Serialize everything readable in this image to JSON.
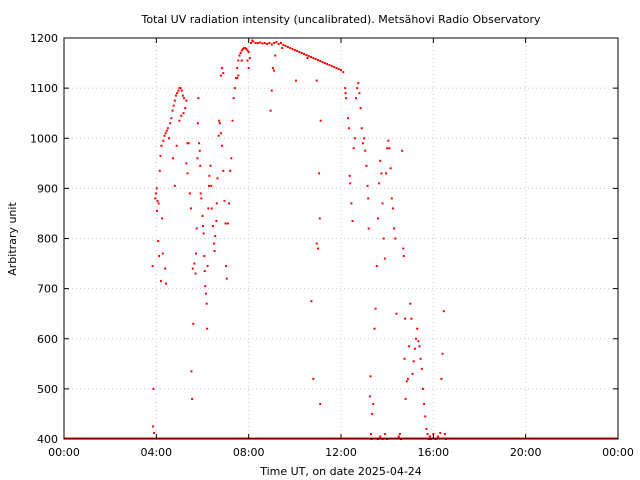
{
  "chart_data": {
    "type": "scatter",
    "title": "Total UV radiation intensity (uncalibrated). Metsähovi Radio Observatory",
    "xlabel": "Time UT, on date 2025-04-24",
    "ylabel": "Arbitrary unit",
    "xlim": [
      0,
      24
    ],
    "ylim": [
      400,
      1200
    ],
    "grid": true,
    "x_tick_values": [
      0,
      4,
      8,
      12,
      16,
      20,
      24
    ],
    "x_tick_labels": [
      "00:00",
      "04:00",
      "08:00",
      "12:00",
      "16:00",
      "20:00",
      "00:00"
    ],
    "y_tick_values": [
      400,
      500,
      600,
      700,
      800,
      900,
      1000,
      1100,
      1200
    ],
    "y_tick_labels": [
      "400",
      "500",
      "600",
      "700",
      "800",
      "900",
      "1000",
      "1100",
      "1200"
    ],
    "series": [
      {
        "color": "#ff0000",
        "points": [
          [
            3.84,
            745
          ],
          [
            3.88,
            500
          ],
          [
            3.86,
            425
          ],
          [
            3.9,
            412
          ],
          [
            3.95,
            880
          ],
          [
            3.98,
            890
          ],
          [
            4.02,
            900
          ],
          [
            4.05,
            875
          ],
          [
            4.03,
            855
          ],
          [
            4.08,
            795
          ],
          [
            4.1,
            870
          ],
          [
            4.15,
            935
          ],
          [
            4.18,
            965
          ],
          [
            4.22,
            985
          ],
          [
            4.25,
            840
          ],
          [
            4.28,
            770
          ],
          [
            4.12,
            765
          ],
          [
            4.2,
            715
          ],
          [
            4.3,
            995
          ],
          [
            4.35,
            1005
          ],
          [
            4.4,
            1010
          ],
          [
            4.45,
            1015
          ],
          [
            4.5,
            1020
          ],
          [
            4.38,
            740
          ],
          [
            4.42,
            710
          ],
          [
            4.55,
            1000
          ],
          [
            4.6,
            1030
          ],
          [
            4.65,
            1040
          ],
          [
            4.7,
            1055
          ],
          [
            4.75,
            1065
          ],
          [
            4.8,
            1075
          ],
          [
            4.85,
            1085
          ],
          [
            4.9,
            1090
          ],
          [
            4.95,
            1095
          ],
          [
            5.0,
            1100
          ],
          [
            5.05,
            1100
          ],
          [
            5.1,
            1095
          ],
          [
            5.15,
            1085
          ],
          [
            5.2,
            1080
          ],
          [
            5.25,
            1060
          ],
          [
            4.72,
            960
          ],
          [
            4.8,
            905
          ],
          [
            4.88,
            985
          ],
          [
            5.0,
            1035
          ],
          [
            5.08,
            1045
          ],
          [
            5.18,
            1050
          ],
          [
            5.3,
            1075
          ],
          [
            5.35,
            990
          ],
          [
            5.4,
            990
          ],
          [
            5.3,
            950
          ],
          [
            5.35,
            930
          ],
          [
            5.45,
            890
          ],
          [
            5.5,
            860
          ],
          [
            5.52,
            535
          ],
          [
            5.55,
            480
          ],
          [
            5.58,
            740
          ],
          [
            5.6,
            630
          ],
          [
            5.65,
            750
          ],
          [
            5.7,
            730
          ],
          [
            5.72,
            770
          ],
          [
            5.75,
            820
          ],
          [
            5.78,
            960
          ],
          [
            5.8,
            1030
          ],
          [
            5.82,
            1080
          ],
          [
            5.85,
            990
          ],
          [
            5.88,
            975
          ],
          [
            5.9,
            945
          ],
          [
            5.92,
            890
          ],
          [
            5.95,
            880
          ],
          [
            6.0,
            845
          ],
          [
            6.02,
            825
          ],
          [
            6.05,
            810
          ],
          [
            6.08,
            765
          ],
          [
            6.1,
            735
          ],
          [
            6.12,
            705
          ],
          [
            6.15,
            690
          ],
          [
            6.18,
            670
          ],
          [
            6.2,
            620
          ],
          [
            6.22,
            745
          ],
          [
            6.25,
            860
          ],
          [
            6.28,
            905
          ],
          [
            6.3,
            925
          ],
          [
            6.35,
            945
          ],
          [
            6.38,
            905
          ],
          [
            6.4,
            860
          ],
          [
            6.45,
            825
          ],
          [
            6.5,
            790
          ],
          [
            6.52,
            775
          ],
          [
            6.55,
            805
          ],
          [
            6.6,
            835
          ],
          [
            6.62,
            870
          ],
          [
            6.65,
            920
          ],
          [
            6.7,
            1005
          ],
          [
            6.72,
            1035
          ],
          [
            6.75,
            1030
          ],
          [
            6.8,
            1010
          ],
          [
            6.85,
            985
          ],
          [
            6.9,
            935
          ],
          [
            6.95,
            875
          ],
          [
            7.0,
            830
          ],
          [
            7.02,
            745
          ],
          [
            7.05,
            720
          ],
          [
            7.1,
            830
          ],
          [
            7.15,
            870
          ],
          [
            7.2,
            935
          ],
          [
            7.25,
            960
          ],
          [
            7.3,
            1035
          ],
          [
            7.35,
            1080
          ],
          [
            7.4,
            1100
          ],
          [
            7.45,
            1120
          ],
          [
            7.5,
            1140
          ],
          [
            7.55,
            1155
          ],
          [
            7.6,
            1165
          ],
          [
            7.65,
            1170
          ],
          [
            7.7,
            1175
          ],
          [
            7.75,
            1178
          ],
          [
            7.8,
            1180
          ],
          [
            7.85,
            1180
          ],
          [
            7.9,
            1178
          ],
          [
            7.95,
            1175
          ],
          [
            8.0,
            1172
          ],
          [
            6.8,
            1125
          ],
          [
            6.85,
            1140
          ],
          [
            6.9,
            1130
          ],
          [
            7.5,
            1120
          ],
          [
            7.55,
            1125
          ],
          [
            7.7,
            1155
          ],
          [
            7.95,
            1155
          ],
          [
            8.0,
            1140
          ],
          [
            8.05,
            1160
          ],
          [
            8.1,
            1190
          ],
          [
            8.15,
            1195
          ],
          [
            8.2,
            1193
          ],
          [
            8.3,
            1190
          ],
          [
            8.4,
            1190
          ],
          [
            8.5,
            1191
          ],
          [
            8.6,
            1189
          ],
          [
            8.7,
            1190
          ],
          [
            8.8,
            1188
          ],
          [
            8.9,
            1190
          ],
          [
            9.0,
            1187
          ],
          [
            9.1,
            1190
          ],
          [
            9.2,
            1192
          ],
          [
            9.3,
            1188
          ],
          [
            9.4,
            1190
          ],
          [
            9.5,
            1186
          ],
          [
            9.6,
            1184
          ],
          [
            9.7,
            1182
          ],
          [
            9.8,
            1180
          ],
          [
            9.9,
            1178
          ],
          [
            10.0,
            1176
          ],
          [
            10.1,
            1174
          ],
          [
            10.2,
            1172
          ],
          [
            10.3,
            1170
          ],
          [
            10.4,
            1168
          ],
          [
            10.5,
            1166
          ],
          [
            10.6,
            1164
          ],
          [
            10.7,
            1162
          ],
          [
            10.8,
            1160
          ],
          [
            10.9,
            1158
          ],
          [
            11.0,
            1156
          ],
          [
            11.1,
            1154
          ],
          [
            11.2,
            1152
          ],
          [
            11.3,
            1150
          ],
          [
            11.4,
            1148
          ],
          [
            11.5,
            1146
          ],
          [
            11.6,
            1144
          ],
          [
            11.7,
            1142
          ],
          [
            11.8,
            1140
          ],
          [
            11.9,
            1138
          ],
          [
            12.0,
            1136
          ],
          [
            12.1,
            1132
          ],
          [
            9.05,
            1140
          ],
          [
            9.1,
            1135
          ],
          [
            9.15,
            1165
          ],
          [
            9.0,
            1095
          ],
          [
            8.95,
            1055
          ],
          [
            9.45,
            1180
          ],
          [
            10.05,
            1115
          ],
          [
            10.55,
            1160
          ],
          [
            10.95,
            1115
          ],
          [
            10.72,
            675
          ],
          [
            10.8,
            520
          ],
          [
            10.95,
            790
          ],
          [
            11.0,
            780
          ],
          [
            11.05,
            930
          ],
          [
            11.08,
            840
          ],
          [
            11.1,
            470
          ],
          [
            11.12,
            1035
          ],
          [
            12.18,
            1100
          ],
          [
            12.2,
            1090
          ],
          [
            12.22,
            1080
          ],
          [
            12.3,
            1040
          ],
          [
            12.35,
            1020
          ],
          [
            12.38,
            925
          ],
          [
            12.4,
            910
          ],
          [
            12.45,
            870
          ],
          [
            12.5,
            835
          ],
          [
            12.55,
            980
          ],
          [
            12.6,
            1000
          ],
          [
            12.65,
            1080
          ],
          [
            12.7,
            1100
          ],
          [
            12.75,
            1110
          ],
          [
            12.8,
            1090
          ],
          [
            12.85,
            1060
          ],
          [
            12.9,
            1020
          ],
          [
            12.95,
            990
          ],
          [
            13.0,
            1000
          ],
          [
            13.05,
            975
          ],
          [
            13.1,
            945
          ],
          [
            13.15,
            905
          ],
          [
            13.18,
            880
          ],
          [
            13.2,
            820
          ],
          [
            13.25,
            485
          ],
          [
            13.28,
            525
          ],
          [
            13.3,
            410
          ],
          [
            13.32,
            400
          ],
          [
            13.35,
            450
          ],
          [
            13.4,
            470
          ],
          [
            13.45,
            620
          ],
          [
            13.5,
            660
          ],
          [
            13.55,
            745
          ],
          [
            13.6,
            840
          ],
          [
            13.65,
            910
          ],
          [
            13.7,
            955
          ],
          [
            13.75,
            930
          ],
          [
            13.8,
            870
          ],
          [
            13.85,
            800
          ],
          [
            13.9,
            760
          ],
          [
            13.95,
            930
          ],
          [
            14.0,
            980
          ],
          [
            14.05,
            995
          ],
          [
            14.1,
            980
          ],
          [
            14.15,
            940
          ],
          [
            14.2,
            880
          ],
          [
            14.25,
            860
          ],
          [
            14.3,
            820
          ],
          [
            14.35,
            800
          ],
          [
            14.4,
            650
          ],
          [
            14.5,
            405
          ],
          [
            14.55,
            410
          ],
          [
            14.6,
            400
          ],
          [
            14.65,
            975
          ],
          [
            14.7,
            780
          ],
          [
            14.72,
            765
          ],
          [
            14.75,
            560
          ],
          [
            14.78,
            640
          ],
          [
            14.8,
            480
          ],
          [
            14.85,
            515
          ],
          [
            14.9,
            520
          ],
          [
            14.95,
            585
          ],
          [
            15.0,
            670
          ],
          [
            15.05,
            640
          ],
          [
            15.1,
            530
          ],
          [
            15.15,
            555
          ],
          [
            15.2,
            580
          ],
          [
            15.25,
            600
          ],
          [
            15.3,
            620
          ],
          [
            15.35,
            595
          ],
          [
            15.4,
            585
          ],
          [
            15.45,
            560
          ],
          [
            15.5,
            540
          ],
          [
            15.55,
            500
          ],
          [
            15.6,
            470
          ],
          [
            15.65,
            445
          ],
          [
            15.7,
            420
          ],
          [
            15.75,
            410
          ],
          [
            15.8,
            400
          ],
          [
            15.85,
            405
          ],
          [
            15.9,
            400
          ],
          [
            16.0,
            410
          ],
          [
            16.1,
            400
          ],
          [
            16.2,
            405
          ],
          [
            16.3,
            412
          ],
          [
            16.35,
            520
          ],
          [
            16.4,
            570
          ],
          [
            16.45,
            655
          ],
          [
            16.5,
            410
          ],
          [
            16.55,
            400
          ],
          [
            13.6,
            400
          ],
          [
            13.7,
            405
          ],
          [
            13.8,
            400
          ],
          [
            13.9,
            410
          ],
          [
            14.0,
            400
          ]
        ]
      }
    ]
  }
}
